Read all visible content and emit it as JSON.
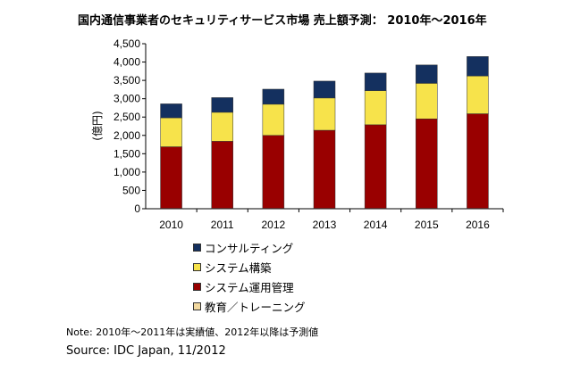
{
  "title": "国内通信事業者のセキュリティサービス市場 売上額予測： 2010年～2016年",
  "note": "Note: 2010年～2011年は実績値、2012年以降は予測値",
  "source": "Source: IDC Japan, 11/2012",
  "chart_data": {
    "type": "bar",
    "stacked": true,
    "categories": [
      "2010",
      "2011",
      "2012",
      "2013",
      "2014",
      "2015",
      "2016"
    ],
    "series": [
      {
        "name": "教育／トレーニング",
        "color": "#f2d9a0",
        "values": [
          10,
          10,
          10,
          10,
          10,
          10,
          10
        ]
      },
      {
        "name": "システム運用管理",
        "color": "#990000",
        "values": [
          1680,
          1830,
          1990,
          2130,
          2280,
          2440,
          2580
        ]
      },
      {
        "name": "システム構築",
        "color": "#f7e34b",
        "values": [
          790,
          790,
          850,
          880,
          930,
          970,
          1030
        ]
      },
      {
        "name": "コンサルティング",
        "color": "#14305f",
        "values": [
          380,
          400,
          410,
          460,
          480,
          500,
          530
        ]
      }
    ],
    "legend_order": [
      "コンサルティング",
      "システム構築",
      "システム運用管理",
      "教育／トレーニング"
    ],
    "ylabel": "(億円)",
    "ylim": [
      0,
      4500
    ],
    "yticks": [
      "0",
      "500",
      "1,000",
      "1,500",
      "2,000",
      "2,500",
      "3,000",
      "3,500",
      "4,000",
      "4,500"
    ],
    "grid": false,
    "legend_position": "bottom"
  }
}
